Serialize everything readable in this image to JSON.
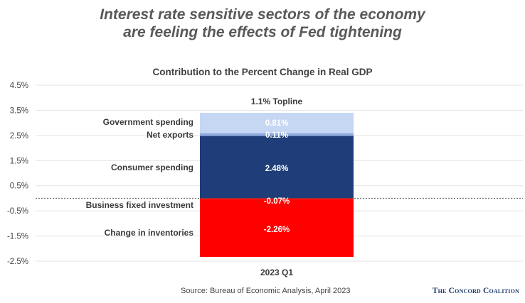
{
  "headline": {
    "line1": "Interest rate sensitive sectors of the economy",
    "line2": "are feeling the effects of Fed tightening"
  },
  "chart_data": {
    "type": "bar",
    "stacked": true,
    "title": "Contribution to the Percent Change in Real GDP",
    "categories": [
      "2023 Q1"
    ],
    "topline_label": "1.1% Topline",
    "ylim": [
      -2.5,
      4.5
    ],
    "yticks": [
      4.5,
      3.5,
      2.5,
      1.5,
      0.5,
      -0.5,
      -1.5,
      -2.5
    ],
    "ytick_labels": [
      "4.5%",
      "3.5%",
      "2.5%",
      "1.5%",
      "0.5%",
      "-0.5%",
      "-1.5%",
      "-2.5%"
    ],
    "grid": true,
    "series": [
      {
        "name": "Consumer spending",
        "values": [
          2.48
        ],
        "label": "2.48%",
        "color": "#1f3e79"
      },
      {
        "name": "Net exports",
        "values": [
          0.11
        ],
        "label": "0.11%",
        "color": "#8faadc"
      },
      {
        "name": "Government spending",
        "values": [
          0.81
        ],
        "label": "0.81%",
        "color": "#c5d7f2"
      },
      {
        "name": "Business fixed investment",
        "values": [
          -0.07
        ],
        "label": "-0.07%",
        "color": "#ff0000"
      },
      {
        "name": "Change in inventories",
        "values": [
          -2.26
        ],
        "label": "-2.26%",
        "color": "#ff0000"
      }
    ]
  },
  "footer": {
    "source": "Source: Bureau of Economic Analysis, April 2023",
    "brand": "The Concord Coalition"
  }
}
